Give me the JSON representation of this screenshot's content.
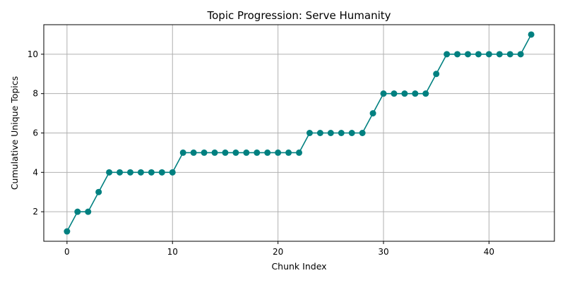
{
  "chart_data": {
    "type": "line",
    "title": "Topic Progression: Serve Humanity",
    "xlabel": "Chunk Index",
    "ylabel": "Cumulative Unique Topics",
    "x": [
      0,
      1,
      2,
      3,
      4,
      5,
      6,
      7,
      8,
      9,
      10,
      11,
      12,
      13,
      14,
      15,
      16,
      17,
      18,
      19,
      20,
      21,
      22,
      23,
      24,
      25,
      26,
      27,
      28,
      29,
      30,
      31,
      32,
      33,
      34,
      35,
      36,
      37,
      38,
      39,
      40,
      41,
      42,
      43,
      44
    ],
    "series": [
      {
        "values": [
          1,
          2,
          2,
          3,
          4,
          4,
          4,
          4,
          4,
          4,
          4,
          5,
          5,
          5,
          5,
          5,
          5,
          5,
          5,
          5,
          5,
          5,
          5,
          6,
          6,
          6,
          6,
          6,
          6,
          7,
          8,
          8,
          8,
          8,
          8,
          9,
          10,
          10,
          10,
          10,
          10,
          10,
          10,
          10,
          11
        ],
        "color": "#008080",
        "marker": "circle"
      }
    ],
    "xlim": [
      -2.2,
      46.2
    ],
    "ylim": [
      0.5,
      11.5
    ],
    "xticks": [
      0,
      10,
      20,
      30,
      40
    ],
    "yticks": [
      2,
      4,
      6,
      8,
      10
    ],
    "grid": true,
    "grid_color": "#b0b0b0",
    "legend": "none"
  }
}
